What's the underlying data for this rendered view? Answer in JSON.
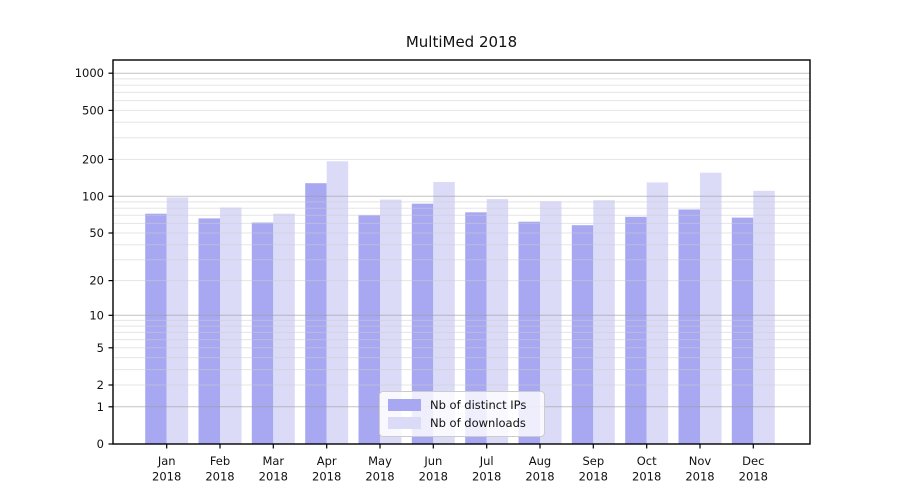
{
  "chart_data": {
    "type": "bar",
    "title": "MultiMed 2018",
    "months": [
      "Jan",
      "Feb",
      "Mar",
      "Apr",
      "May",
      "Jun",
      "Jul",
      "Aug",
      "Sep",
      "Oct",
      "Nov",
      "Dec"
    ],
    "year": "2018",
    "series": [
      {
        "key": "distinct-ips",
        "name": "Nb of distinct IPs",
        "color": "#a8a8f2",
        "values": [
          72,
          66,
          61,
          128,
          70,
          87,
          74,
          62,
          58,
          68,
          78,
          67
        ]
      },
      {
        "key": "downloads",
        "name": "Nb of downloads",
        "color": "#dbdbf8",
        "values": [
          98,
          81,
          72,
          193,
          94,
          131,
          95,
          91,
          93,
          130,
          156,
          111
        ]
      }
    ],
    "y_scale": "log1p",
    "y_ticks": [
      0,
      1,
      2,
      5,
      10,
      20,
      50,
      100,
      200,
      500,
      1000
    ],
    "ylim": [
      0,
      1280
    ],
    "xlabel": "",
    "ylabel": "",
    "grid": {
      "on": true,
      "major_color": "#9a9a9a",
      "minor_color": "#cccccc"
    },
    "axis_color": "#000000",
    "legend": {
      "position": "lower center"
    }
  }
}
